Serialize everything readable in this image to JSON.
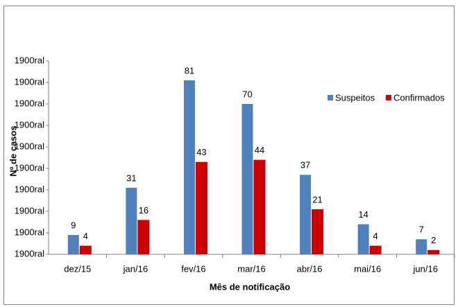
{
  "chart_data": {
    "type": "bar",
    "categories": [
      "dez/15",
      "jan/16",
      "fev/16",
      "mar/16",
      "abr/16",
      "mai/16",
      "jun/16"
    ],
    "series": [
      {
        "name": "Suspeitos",
        "color": "#4f81bd",
        "values": [
          9,
          31,
          81,
          70,
          37,
          14,
          7
        ]
      },
      {
        "name": "Confirmados",
        "color": "#cc0000",
        "values": [
          4,
          16,
          43,
          44,
          21,
          4,
          2
        ]
      }
    ],
    "ylim": [
      0,
      90
    ],
    "yticks": [
      {
        "value": 0,
        "label": "1900ral"
      },
      {
        "value": 10,
        "label": "1900ral"
      },
      {
        "value": 20,
        "label": "1900ral"
      },
      {
        "value": 30,
        "label": "1900ral"
      },
      {
        "value": 40,
        "label": "1900ral"
      },
      {
        "value": 50,
        "label": "1900ral"
      },
      {
        "value": 60,
        "label": "1900ral"
      },
      {
        "value": 70,
        "label": "1900ral"
      },
      {
        "value": 80,
        "label": "1900ral"
      },
      {
        "value": 90,
        "label": "1900ral"
      }
    ],
    "xlabel": "Mês de notificação",
    "ylabel": "Nº de casos",
    "legend": "right"
  }
}
